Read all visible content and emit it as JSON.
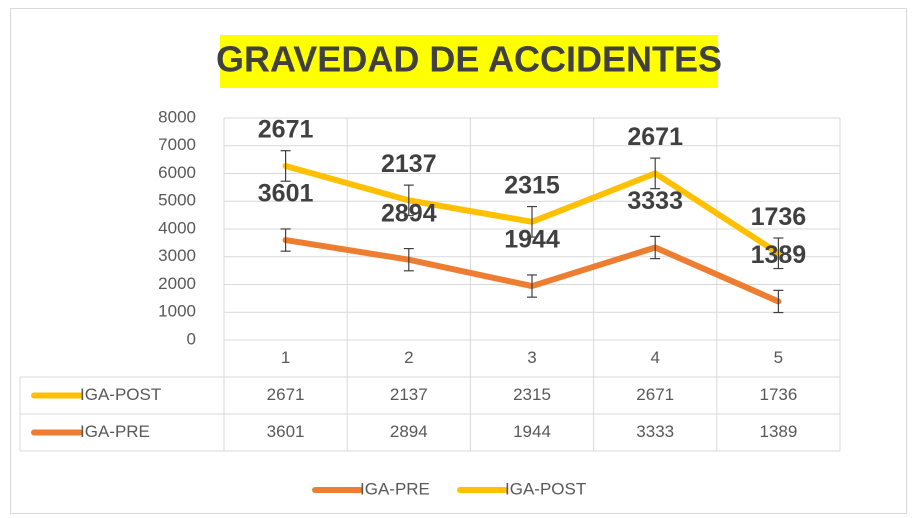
{
  "chart_data": {
    "type": "line",
    "stacked": true,
    "title": "GRAVEDAD DE ACCIDENTES",
    "categories": [
      "1",
      "2",
      "3",
      "4",
      "5"
    ],
    "series": [
      {
        "name": "IGA-PRE",
        "color": "#ed7d31",
        "values": [
          3601,
          2894,
          1944,
          3333,
          1389
        ],
        "errors": [
          400,
          400,
          400,
          400,
          400
        ]
      },
      {
        "name": "IGA-POST",
        "color": "#ffc000",
        "values": [
          2671,
          2137,
          2315,
          2671,
          1736
        ],
        "errors": [
          550,
          550,
          550,
          550,
          550
        ]
      }
    ],
    "ylim": [
      0,
      8000
    ],
    "yticks": [
      0,
      1000,
      2000,
      3000,
      4000,
      5000,
      6000,
      7000,
      8000
    ],
    "grid": true,
    "data_table": true,
    "legend": "bottom"
  }
}
